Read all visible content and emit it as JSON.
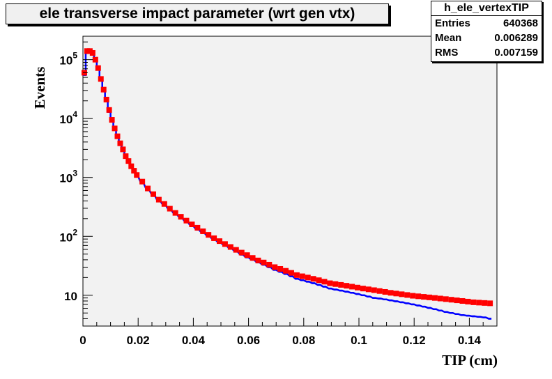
{
  "chart_data": {
    "type": "line",
    "title": "ele transverse impact parameter (wrt gen vtx)",
    "xlabel": "TIP (cm)",
    "ylabel": "Events",
    "xlim": [
      0,
      0.15
    ],
    "ylim": [
      3,
      250000
    ],
    "yscale": "log",
    "grid": false,
    "x_tick_labels": [
      "0",
      "0.02",
      "0.04",
      "0.06",
      "0.08",
      "0.1",
      "0.12",
      "0.14"
    ],
    "y_tick_labels": [
      {
        "value": 10,
        "base": "10",
        "exp": ""
      },
      {
        "value": 100,
        "base": "10",
        "exp": "2"
      },
      {
        "value": 1000,
        "base": "10",
        "exp": "3"
      },
      {
        "value": 10000,
        "base": "10",
        "exp": "4"
      },
      {
        "value": 100000,
        "base": "10",
        "exp": "5"
      }
    ],
    "stats_box": {
      "name": "h_ele_vertexTIP",
      "rows": [
        {
          "label": "Entries",
          "value": "640368"
        },
        {
          "label": "Mean",
          "value": "0.006289"
        },
        {
          "label": "RMS",
          "value": "0.007159"
        }
      ]
    },
    "series": [
      {
        "color": "#0000ff",
        "style": "histogram",
        "x": [
          0.001,
          0.002,
          0.003,
          0.004,
          0.005,
          0.006,
          0.007,
          0.008,
          0.009,
          0.01,
          0.011,
          0.012,
          0.013,
          0.014,
          0.015,
          0.016,
          0.017,
          0.018,
          0.019,
          0.02,
          0.022,
          0.024,
          0.026,
          0.028,
          0.03,
          0.032,
          0.034,
          0.036,
          0.038,
          0.04,
          0.042,
          0.044,
          0.046,
          0.048,
          0.05,
          0.052,
          0.054,
          0.056,
          0.058,
          0.06,
          0.062,
          0.064,
          0.066,
          0.068,
          0.07,
          0.072,
          0.074,
          0.076,
          0.078,
          0.08,
          0.082,
          0.084,
          0.086,
          0.088,
          0.09,
          0.092,
          0.094,
          0.096,
          0.098,
          0.1,
          0.102,
          0.104,
          0.106,
          0.108,
          0.11,
          0.112,
          0.114,
          0.116,
          0.118,
          0.12,
          0.122,
          0.124,
          0.126,
          0.128,
          0.13,
          0.132,
          0.134,
          0.136,
          0.138,
          0.14,
          0.142,
          0.144,
          0.146,
          0.148
        ],
        "y": [
          55000,
          130000,
          135000,
          125000,
          100000,
          70000,
          45000,
          30000,
          20000,
          13000,
          9000,
          6500,
          4700,
          3600,
          2800,
          2200,
          1800,
          1500,
          1250,
          1050,
          800,
          620,
          500,
          400,
          340,
          280,
          240,
          205,
          175,
          150,
          130,
          115,
          100,
          88,
          78,
          70,
          62,
          55,
          49,
          44,
          40,
          36,
          33,
          30,
          27,
          25,
          23,
          21,
          19,
          18,
          17,
          16,
          15,
          14,
          13,
          12.5,
          12,
          11.5,
          11,
          10.5,
          10,
          9.5,
          9,
          8.8,
          8.5,
          8.2,
          7.9,
          7.6,
          7.3,
          7,
          6.7,
          6.4,
          6.1,
          5.8,
          5.5,
          5.2,
          5,
          4.8,
          4.6,
          4.5,
          4.4,
          4.3,
          4.2,
          4
        ]
      },
      {
        "color": "#ff0000",
        "style": "markers",
        "x": [
          0.001,
          0.002,
          0.003,
          0.004,
          0.005,
          0.006,
          0.007,
          0.008,
          0.009,
          0.01,
          0.011,
          0.012,
          0.013,
          0.014,
          0.015,
          0.016,
          0.017,
          0.018,
          0.019,
          0.02,
          0.022,
          0.024,
          0.026,
          0.028,
          0.03,
          0.032,
          0.034,
          0.036,
          0.038,
          0.04,
          0.042,
          0.044,
          0.046,
          0.048,
          0.05,
          0.052,
          0.054,
          0.056,
          0.058,
          0.06,
          0.062,
          0.064,
          0.066,
          0.068,
          0.07,
          0.072,
          0.074,
          0.076,
          0.078,
          0.08,
          0.082,
          0.084,
          0.086,
          0.088,
          0.09,
          0.092,
          0.094,
          0.096,
          0.098,
          0.1,
          0.102,
          0.104,
          0.106,
          0.108,
          0.11,
          0.112,
          0.114,
          0.116,
          0.118,
          0.12,
          0.122,
          0.124,
          0.126,
          0.128,
          0.13,
          0.132,
          0.134,
          0.136,
          0.138,
          0.14,
          0.142,
          0.144,
          0.146,
          0.148
        ],
        "y": [
          60000,
          140000,
          140000,
          130000,
          100000,
          72000,
          47000,
          31000,
          21000,
          14000,
          9500,
          6800,
          5000,
          3800,
          3000,
          2300,
          1900,
          1550,
          1300,
          1100,
          850,
          650,
          520,
          420,
          355,
          295,
          250,
          215,
          185,
          160,
          140,
          122,
          106,
          93,
          83,
          74,
          66,
          59,
          53,
          48,
          43,
          39,
          36,
          33,
          30,
          28,
          26,
          24,
          22,
          21,
          20,
          19,
          18,
          17,
          16,
          15.5,
          15,
          14.5,
          14,
          13.5,
          13,
          12.6,
          12.2,
          11.8,
          11.4,
          11,
          10.7,
          10.4,
          10.1,
          9.8,
          9.6,
          9.4,
          9.2,
          9,
          8.8,
          8.6,
          8.4,
          8.2,
          8,
          7.8,
          7.6,
          7.5,
          7.4,
          7.3
        ]
      }
    ]
  }
}
